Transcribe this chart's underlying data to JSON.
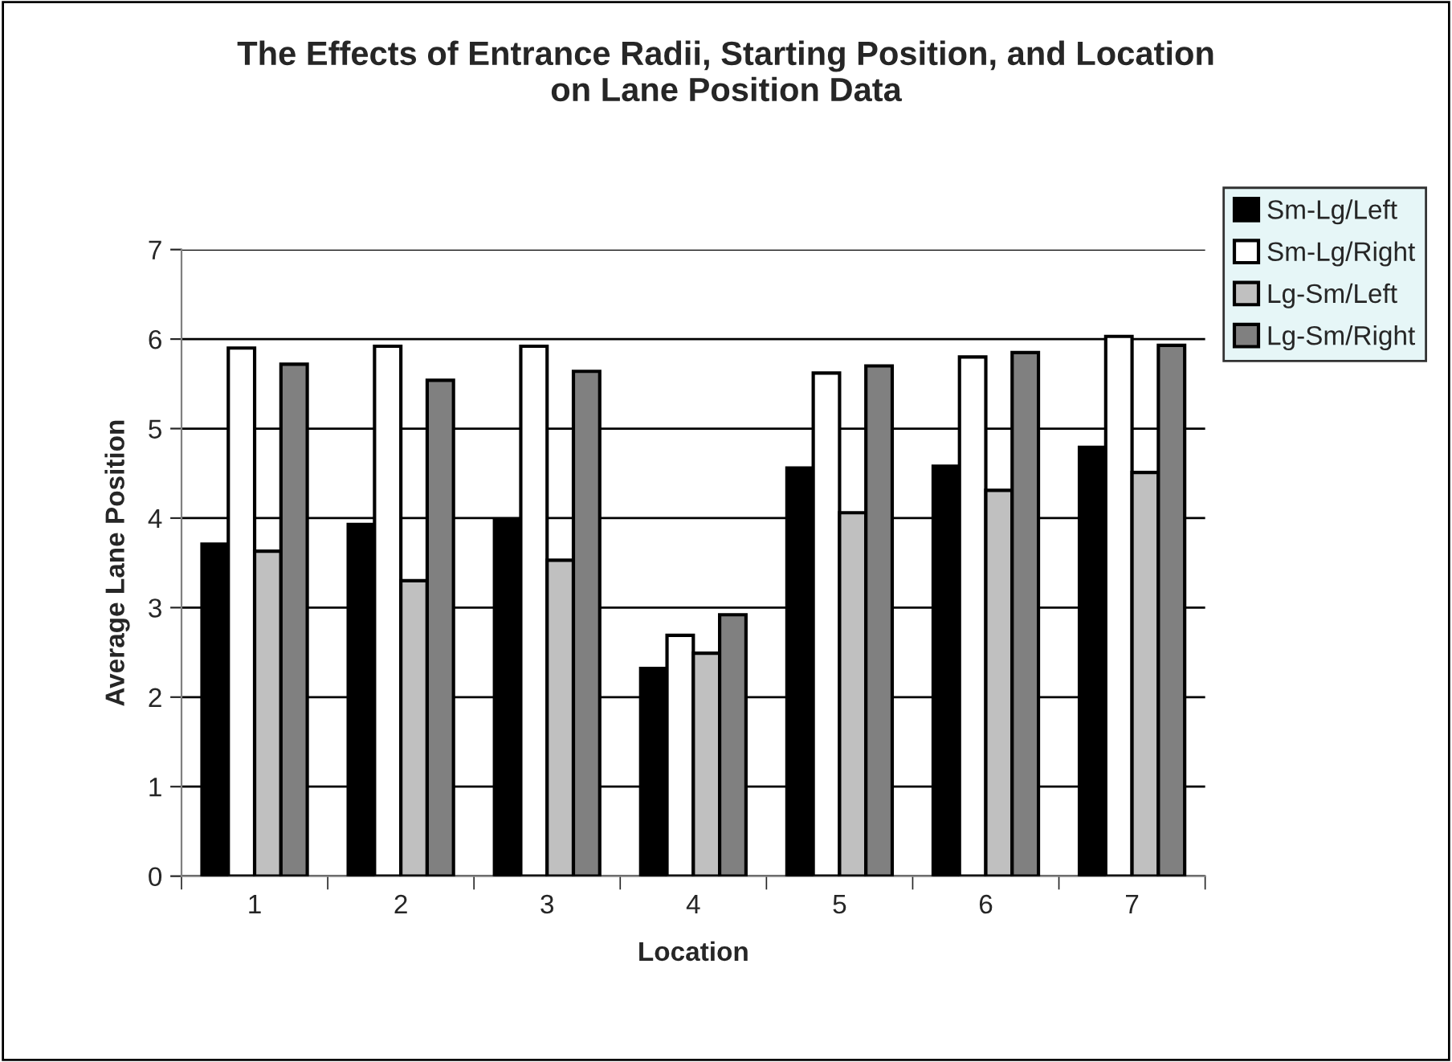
{
  "chart_data": {
    "type": "bar",
    "title": "The Effects of Entrance Radii, Starting Position, and Location\non Lane Position Data",
    "xlabel": "Location",
    "ylabel": "Average Lane Position",
    "categories": [
      "1",
      "2",
      "3",
      "4",
      "5",
      "6",
      "7"
    ],
    "series": [
      {
        "name": "Sm-Lg/Left",
        "color": "#000000",
        "values": [
          3.71,
          3.93,
          3.99,
          2.32,
          4.56,
          4.58,
          4.79
        ]
      },
      {
        "name": "Sm-Lg/Right",
        "color": "#ffffff",
        "values": [
          5.9,
          5.92,
          5.92,
          2.69,
          5.62,
          5.8,
          6.03
        ]
      },
      {
        "name": "Lg-Sm/Left",
        "color": "#c0c0c0",
        "values": [
          3.63,
          3.3,
          3.53,
          2.49,
          4.06,
          4.31,
          4.51
        ]
      },
      {
        "name": "Lg-Sm/Right",
        "color": "#808080",
        "values": [
          5.72,
          5.54,
          5.64,
          2.92,
          5.7,
          5.85,
          5.93
        ]
      }
    ],
    "ylim": [
      0,
      7
    ],
    "yticks": [
      0,
      1,
      2,
      3,
      4,
      5,
      6,
      7
    ],
    "grid": "y",
    "legend": "right"
  }
}
